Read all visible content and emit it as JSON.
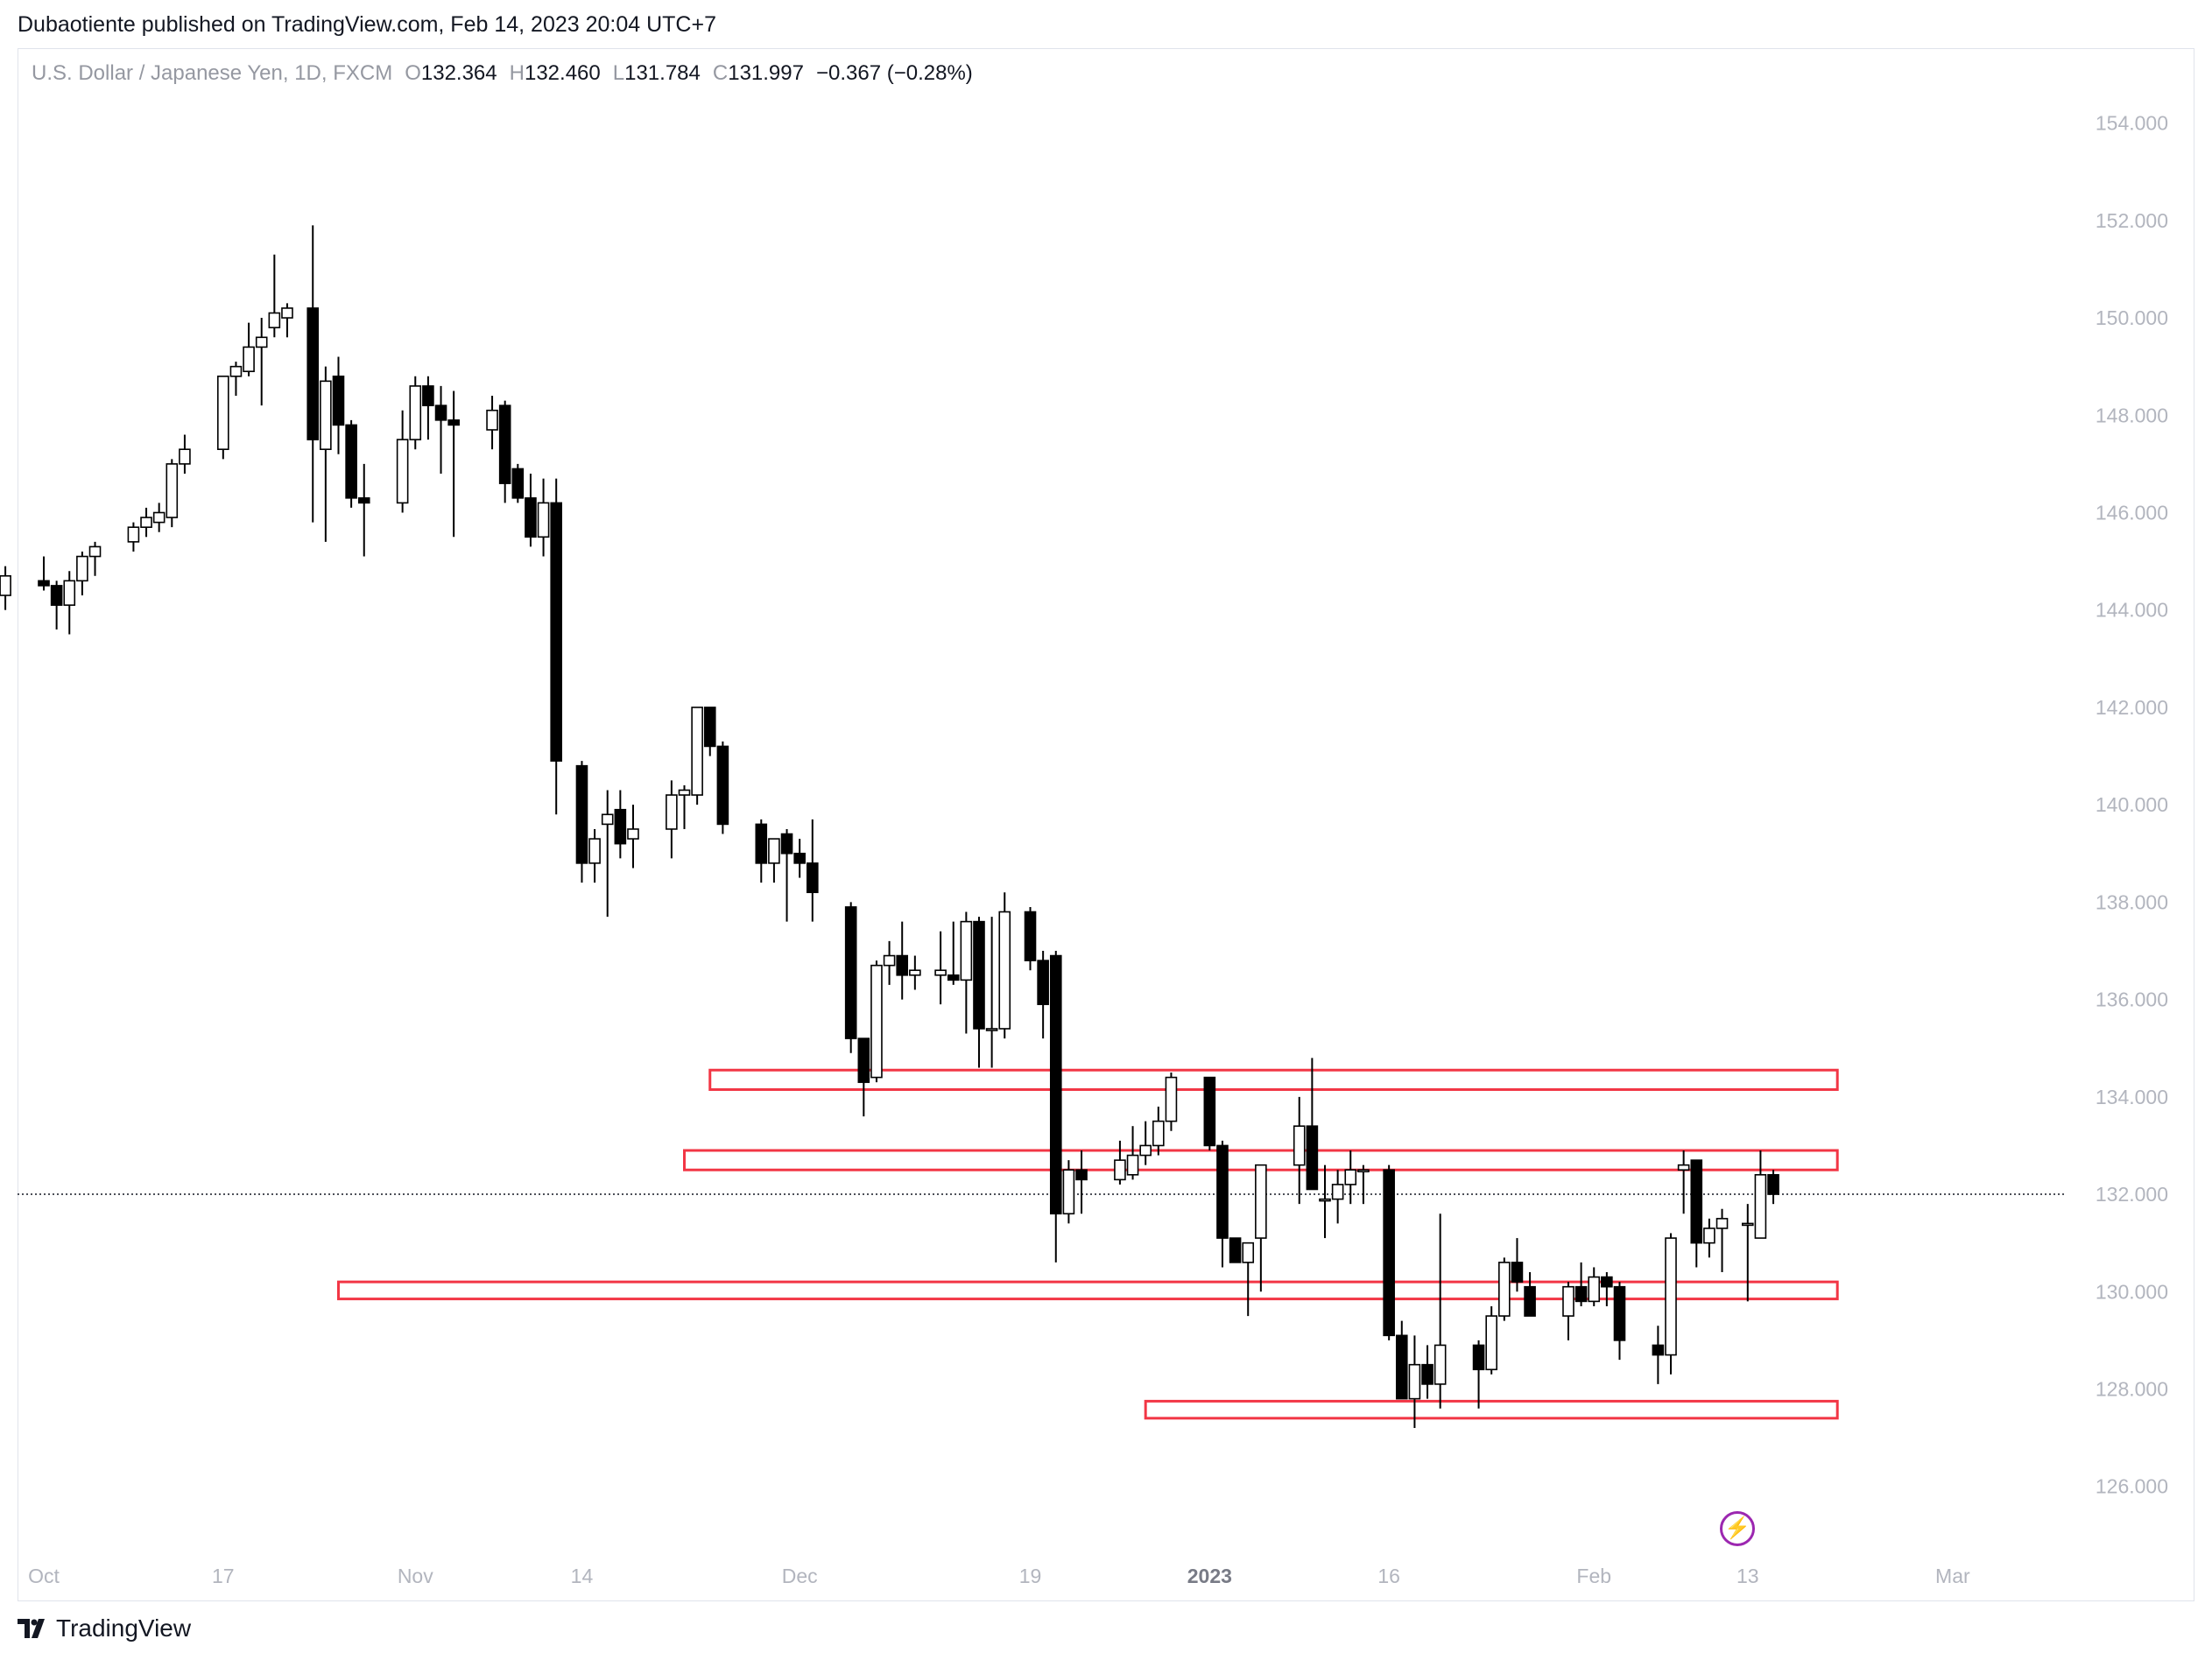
{
  "header": {
    "published": "Dubaotiente published on TradingView.com, Feb 14, 2023 20:04 UTC+7"
  },
  "legend": {
    "symbol": "U.S. Dollar / Japanese Yen, 1D, FXCM",
    "o_label": "O",
    "o_value": "132.364",
    "h_label": "H",
    "h_value": "132.460",
    "l_label": "L",
    "l_value": "131.784",
    "c_label": "C",
    "c_value": "131.997",
    "change": "−0.367 (−0.28%)"
  },
  "footer": {
    "brand": "TradingView"
  },
  "colors": {
    "zone": "#f23645",
    "axis_text": "#b2b5be",
    "candle": "#000000"
  },
  "icons": {
    "brand": "tradingview-logo-icon",
    "bolt": "lightning-icon"
  },
  "chart_data": {
    "type": "candlestick",
    "ylim": [
      124.7,
      155
    ],
    "y_ticks": [
      "154.000",
      "152.000",
      "150.000",
      "148.000",
      "146.000",
      "144.000",
      "142.000",
      "140.000",
      "138.000",
      "136.000",
      "134.000",
      "132.000",
      "130.000",
      "128.000",
      "126.000"
    ],
    "x_ticks": [
      {
        "label": "Oct",
        "date": "2022-10-03"
      },
      {
        "label": "17",
        "date": "2022-10-17"
      },
      {
        "label": "Nov",
        "date": "2022-11-01"
      },
      {
        "label": "14",
        "date": "2022-11-14"
      },
      {
        "label": "Dec",
        "date": "2022-12-01"
      },
      {
        "label": "19",
        "date": "2022-12-19"
      },
      {
        "label": "2023",
        "date": "2023-01-02",
        "bold": true
      },
      {
        "label": "16",
        "date": "2023-01-16"
      },
      {
        "label": "Feb",
        "date": "2023-02-01"
      },
      {
        "label": "13",
        "date": "2023-02-13"
      },
      {
        "label": "Mar",
        "date": "2023-03-01"
      }
    ],
    "last_price": 132.0,
    "candles": [
      {
        "d": "2022-09-30",
        "o": 144.3,
        "h": 144.9,
        "l": 144.0,
        "c": 144.7
      },
      {
        "d": "2022-10-03",
        "o": 144.6,
        "h": 145.1,
        "l": 144.4,
        "c": 144.5
      },
      {
        "d": "2022-10-04",
        "o": 144.5,
        "h": 144.6,
        "l": 143.6,
        "c": 144.1
      },
      {
        "d": "2022-10-05",
        "o": 144.1,
        "h": 144.8,
        "l": 143.5,
        "c": 144.6
      },
      {
        "d": "2022-10-06",
        "o": 144.6,
        "h": 145.2,
        "l": 144.3,
        "c": 145.1
      },
      {
        "d": "2022-10-07",
        "o": 145.1,
        "h": 145.4,
        "l": 144.7,
        "c": 145.3
      },
      {
        "d": "2022-10-10",
        "o": 145.4,
        "h": 145.8,
        "l": 145.2,
        "c": 145.7
      },
      {
        "d": "2022-10-11",
        "o": 145.7,
        "h": 146.1,
        "l": 145.5,
        "c": 145.9
      },
      {
        "d": "2022-10-12",
        "o": 145.8,
        "h": 146.2,
        "l": 145.6,
        "c": 146.0
      },
      {
        "d": "2022-10-13",
        "o": 145.9,
        "h": 147.1,
        "l": 145.7,
        "c": 147.0
      },
      {
        "d": "2022-10-14",
        "o": 147.0,
        "h": 147.6,
        "l": 146.8,
        "c": 147.3
      },
      {
        "d": "2022-10-17",
        "o": 147.3,
        "h": 148.8,
        "l": 147.1,
        "c": 148.8
      },
      {
        "d": "2022-10-18",
        "o": 148.8,
        "h": 149.1,
        "l": 148.4,
        "c": 149.0
      },
      {
        "d": "2022-10-19",
        "o": 148.9,
        "h": 149.9,
        "l": 148.8,
        "c": 149.4
      },
      {
        "d": "2022-10-20",
        "o": 149.4,
        "h": 150.0,
        "l": 148.2,
        "c": 149.6
      },
      {
        "d": "2022-10-21",
        "o": 149.8,
        "h": 151.3,
        "l": 149.6,
        "c": 150.1
      },
      {
        "d": "2022-10-22",
        "o": 150.0,
        "h": 150.3,
        "l": 149.6,
        "c": 150.2
      },
      {
        "d": "2022-10-24",
        "o": 150.2,
        "h": 151.9,
        "l": 145.8,
        "c": 147.5
      },
      {
        "d": "2022-10-25",
        "o": 147.3,
        "h": 149.0,
        "l": 145.4,
        "c": 148.7
      },
      {
        "d": "2022-10-26",
        "o": 148.8,
        "h": 149.2,
        "l": 147.2,
        "c": 147.8
      },
      {
        "d": "2022-10-27",
        "o": 147.8,
        "h": 147.9,
        "l": 146.1,
        "c": 146.3
      },
      {
        "d": "2022-10-28",
        "o": 146.3,
        "h": 147.0,
        "l": 145.1,
        "c": 146.2
      },
      {
        "d": "2022-10-31",
        "o": 146.2,
        "h": 148.1,
        "l": 146.0,
        "c": 147.5
      },
      {
        "d": "2022-11-01",
        "o": 147.5,
        "h": 148.8,
        "l": 147.3,
        "c": 148.6
      },
      {
        "d": "2022-11-02",
        "o": 148.6,
        "h": 148.8,
        "l": 147.5,
        "c": 148.2
      },
      {
        "d": "2022-11-03",
        "o": 148.2,
        "h": 148.6,
        "l": 146.8,
        "c": 147.9
      },
      {
        "d": "2022-11-04",
        "o": 147.9,
        "h": 148.5,
        "l": 145.5,
        "c": 147.8
      },
      {
        "d": "2022-11-07",
        "o": 147.7,
        "h": 148.4,
        "l": 147.3,
        "c": 148.1
      },
      {
        "d": "2022-11-08",
        "o": 148.2,
        "h": 148.3,
        "l": 146.2,
        "c": 146.6
      },
      {
        "d": "2022-11-09",
        "o": 146.9,
        "h": 147.0,
        "l": 146.2,
        "c": 146.3
      },
      {
        "d": "2022-11-10",
        "o": 146.3,
        "h": 146.8,
        "l": 145.3,
        "c": 145.5
      },
      {
        "d": "2022-11-11",
        "o": 145.5,
        "h": 146.7,
        "l": 145.1,
        "c": 146.2
      },
      {
        "d": "2022-11-12",
        "o": 146.2,
        "h": 146.7,
        "l": 139.8,
        "c": 140.9
      },
      {
        "d": "2022-11-14",
        "o": 140.8,
        "h": 140.9,
        "l": 138.4,
        "c": 138.8
      },
      {
        "d": "2022-11-15",
        "o": 138.8,
        "h": 139.5,
        "l": 138.4,
        "c": 139.3
      },
      {
        "d": "2022-11-16",
        "o": 139.6,
        "h": 140.3,
        "l": 137.7,
        "c": 139.8
      },
      {
        "d": "2022-11-17",
        "o": 139.9,
        "h": 140.3,
        "l": 138.9,
        "c": 139.2
      },
      {
        "d": "2022-11-18",
        "o": 139.3,
        "h": 140.0,
        "l": 138.7,
        "c": 139.5
      },
      {
        "d": "2022-11-21",
        "o": 139.5,
        "h": 140.5,
        "l": 138.9,
        "c": 140.2
      },
      {
        "d": "2022-11-22",
        "o": 140.2,
        "h": 140.4,
        "l": 139.5,
        "c": 140.3
      },
      {
        "d": "2022-11-23",
        "o": 140.2,
        "h": 141.7,
        "l": 140.0,
        "c": 142.0
      },
      {
        "d": "2022-11-24",
        "o": 142.0,
        "h": 142.0,
        "l": 141.0,
        "c": 141.2
      },
      {
        "d": "2022-11-25",
        "o": 141.2,
        "h": 141.3,
        "l": 139.4,
        "c": 139.6
      },
      {
        "d": "2022-11-28",
        "o": 139.6,
        "h": 139.7,
        "l": 138.4,
        "c": 138.8
      },
      {
        "d": "2022-11-29",
        "o": 138.8,
        "h": 139.2,
        "l": 138.4,
        "c": 139.3
      },
      {
        "d": "2022-11-30",
        "o": 139.4,
        "h": 139.5,
        "l": 137.6,
        "c": 139.0
      },
      {
        "d": "2022-12-01",
        "o": 139.0,
        "h": 139.3,
        "l": 138.5,
        "c": 138.8
      },
      {
        "d": "2022-12-02",
        "o": 138.8,
        "h": 139.7,
        "l": 137.6,
        "c": 138.2
      },
      {
        "d": "2022-12-05",
        "o": 137.9,
        "h": 138.0,
        "l": 134.9,
        "c": 135.2
      },
      {
        "d": "2022-12-06",
        "o": 135.2,
        "h": 135.2,
        "l": 133.6,
        "c": 134.3
      },
      {
        "d": "2022-12-07",
        "o": 134.4,
        "h": 136.8,
        "l": 134.3,
        "c": 136.7
      },
      {
        "d": "2022-12-08",
        "o": 136.7,
        "h": 137.2,
        "l": 136.3,
        "c": 136.9
      },
      {
        "d": "2022-12-09",
        "o": 136.9,
        "h": 137.6,
        "l": 136.0,
        "c": 136.5
      },
      {
        "d": "2022-12-10",
        "o": 136.5,
        "h": 136.9,
        "l": 136.2,
        "c": 136.6
      },
      {
        "d": "2022-12-12",
        "o": 136.5,
        "h": 137.4,
        "l": 135.9,
        "c": 136.6
      },
      {
        "d": "2022-12-13",
        "o": 136.5,
        "h": 137.6,
        "l": 136.3,
        "c": 136.4
      },
      {
        "d": "2022-12-14",
        "o": 136.4,
        "h": 137.8,
        "l": 135.3,
        "c": 137.6
      },
      {
        "d": "2022-12-15",
        "o": 137.6,
        "h": 137.7,
        "l": 134.6,
        "c": 135.4
      },
      {
        "d": "2022-12-16",
        "o": 135.4,
        "h": 137.7,
        "l": 134.6,
        "c": 135.4
      },
      {
        "d": "2022-12-17",
        "o": 135.4,
        "h": 138.2,
        "l": 135.2,
        "c": 137.8
      },
      {
        "d": "2022-12-19",
        "o": 137.8,
        "h": 137.9,
        "l": 136.6,
        "c": 136.8
      },
      {
        "d": "2022-12-20",
        "o": 136.8,
        "h": 137.0,
        "l": 135.2,
        "c": 135.9
      },
      {
        "d": "2022-12-21",
        "o": 136.9,
        "h": 137.0,
        "l": 130.6,
        "c": 131.6
      },
      {
        "d": "2022-12-22",
        "o": 131.6,
        "h": 132.7,
        "l": 131.4,
        "c": 132.5
      },
      {
        "d": "2022-12-23",
        "o": 132.5,
        "h": 132.9,
        "l": 131.6,
        "c": 132.3
      },
      {
        "d": "2022-12-26",
        "o": 132.3,
        "h": 133.1,
        "l": 132.2,
        "c": 132.7
      },
      {
        "d": "2022-12-27",
        "o": 132.4,
        "h": 133.4,
        "l": 132.3,
        "c": 132.8
      },
      {
        "d": "2022-12-28",
        "o": 132.8,
        "h": 133.5,
        "l": 132.6,
        "c": 133.0
      },
      {
        "d": "2022-12-29",
        "o": 133.0,
        "h": 133.8,
        "l": 132.8,
        "c": 133.5
      },
      {
        "d": "2022-12-30",
        "o": 133.5,
        "h": 134.5,
        "l": 133.3,
        "c": 134.4
      },
      {
        "d": "2023-01-02",
        "o": 134.4,
        "h": 134.4,
        "l": 132.9,
        "c": 133.0
      },
      {
        "d": "2023-01-03",
        "o": 133.0,
        "h": 133.1,
        "l": 130.5,
        "c": 131.1
      },
      {
        "d": "2023-01-04",
        "o": 131.1,
        "h": 131.1,
        "l": 130.6,
        "c": 130.6
      },
      {
        "d": "2023-01-05",
        "o": 130.6,
        "h": 131.0,
        "l": 129.5,
        "c": 131.0
      },
      {
        "d": "2023-01-06",
        "o": 131.1,
        "h": 132.6,
        "l": 130.0,
        "c": 132.6
      },
      {
        "d": "2023-01-09",
        "o": 132.6,
        "h": 134.0,
        "l": 131.8,
        "c": 133.4
      },
      {
        "d": "2023-01-10",
        "o": 133.4,
        "h": 134.8,
        "l": 132.3,
        "c": 132.1
      },
      {
        "d": "2023-01-11",
        "o": 131.9,
        "h": 132.6,
        "l": 131.1,
        "c": 131.9
      },
      {
        "d": "2023-01-12",
        "o": 131.9,
        "h": 132.5,
        "l": 131.4,
        "c": 132.2
      },
      {
        "d": "2023-01-13",
        "o": 132.2,
        "h": 132.9,
        "l": 131.8,
        "c": 132.5
      },
      {
        "d": "2023-01-14",
        "o": 132.5,
        "h": 132.6,
        "l": 131.8,
        "c": 132.5
      },
      {
        "d": "2023-01-16",
        "o": 132.5,
        "h": 132.6,
        "l": 129.0,
        "c": 129.1
      },
      {
        "d": "2023-01-17",
        "o": 129.1,
        "h": 129.4,
        "l": 127.8,
        "c": 127.8
      },
      {
        "d": "2023-01-18",
        "o": 127.8,
        "h": 129.1,
        "l": 127.2,
        "c": 128.5
      },
      {
        "d": "2023-01-19",
        "o": 128.5,
        "h": 128.9,
        "l": 127.8,
        "c": 128.1
      },
      {
        "d": "2023-01-20",
        "o": 128.1,
        "h": 131.6,
        "l": 127.6,
        "c": 128.9
      },
      {
        "d": "2023-01-23",
        "o": 128.9,
        "h": 129.0,
        "l": 127.6,
        "c": 128.4
      },
      {
        "d": "2023-01-24",
        "o": 128.4,
        "h": 129.7,
        "l": 128.3,
        "c": 129.5
      },
      {
        "d": "2023-01-25",
        "o": 129.5,
        "h": 130.7,
        "l": 129.4,
        "c": 130.6
      },
      {
        "d": "2023-01-26",
        "o": 130.6,
        "h": 131.1,
        "l": 130.0,
        "c": 130.2
      },
      {
        "d": "2023-01-27",
        "o": 130.1,
        "h": 130.4,
        "l": 129.6,
        "c": 129.5
      },
      {
        "d": "2023-01-30",
        "o": 129.5,
        "h": 130.2,
        "l": 129.0,
        "c": 130.1
      },
      {
        "d": "2023-01-31",
        "o": 130.1,
        "h": 130.6,
        "l": 129.7,
        "c": 129.8
      },
      {
        "d": "2023-02-01",
        "o": 129.8,
        "h": 130.5,
        "l": 129.7,
        "c": 130.3
      },
      {
        "d": "2023-02-02",
        "o": 130.3,
        "h": 130.4,
        "l": 129.7,
        "c": 130.1
      },
      {
        "d": "2023-02-03",
        "o": 130.1,
        "h": 130.2,
        "l": 128.6,
        "c": 129.0
      },
      {
        "d": "2023-02-06",
        "o": 128.9,
        "h": 129.3,
        "l": 128.1,
        "c": 128.7
      },
      {
        "d": "2023-02-07",
        "o": 128.7,
        "h": 131.2,
        "l": 128.3,
        "c": 131.1
      },
      {
        "d": "2023-02-08",
        "o": 132.5,
        "h": 132.9,
        "l": 131.6,
        "c": 132.6
      },
      {
        "d": "2023-02-09",
        "o": 132.7,
        "h": 132.7,
        "l": 130.5,
        "c": 131.0
      },
      {
        "d": "2023-02-10",
        "o": 131.0,
        "h": 131.5,
        "l": 130.7,
        "c": 131.3
      },
      {
        "d": "2023-02-11",
        "o": 131.3,
        "h": 131.7,
        "l": 130.4,
        "c": 131.5
      },
      {
        "d": "2023-02-13",
        "o": 131.4,
        "h": 131.8,
        "l": 129.8,
        "c": 131.4
      },
      {
        "d": "2023-02-14",
        "o": 131.1,
        "h": 132.9,
        "l": 131.1,
        "c": 132.4
      },
      {
        "d": "2023-02-15",
        "o": 132.4,
        "h": 132.5,
        "l": 131.8,
        "c": 132.0
      }
    ],
    "zones": [
      {
        "d1": "2022-11-24",
        "d2": "2023-02-20",
        "y1": 134.15,
        "y2": 134.55
      },
      {
        "d1": "2022-11-22",
        "d2": "2023-02-20",
        "y1": 132.5,
        "y2": 132.9
      },
      {
        "d1": "2022-10-26",
        "d2": "2023-02-20",
        "y1": 129.85,
        "y2": 130.2
      },
      {
        "d1": "2022-12-28",
        "d2": "2023-02-20",
        "y1": 127.4,
        "y2": 127.75
      }
    ]
  }
}
